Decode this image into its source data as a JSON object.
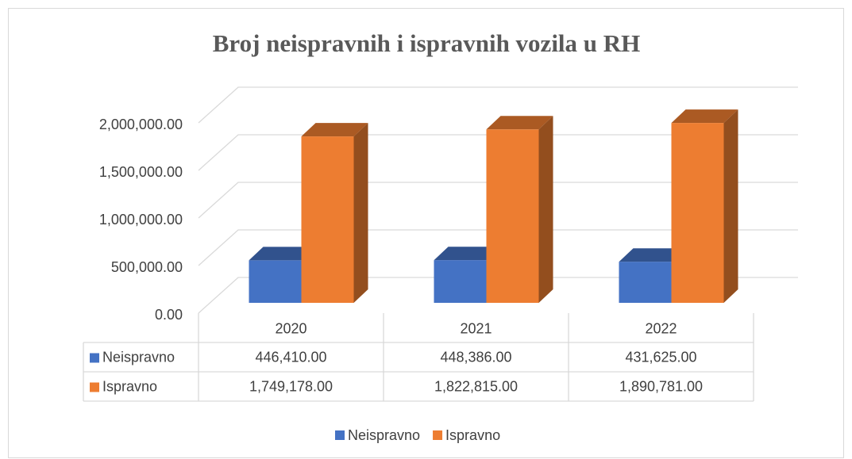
{
  "chart_data": {
    "type": "bar3d",
    "title": "Broj neispravnih i ispravnih vozila u RH",
    "categories": [
      "2020",
      "2021",
      "2022"
    ],
    "series": [
      {
        "name": "Neispravno",
        "color": "#4472c4",
        "values": [
          446410,
          448386,
          431625
        ],
        "value_labels": [
          "446,410.00",
          "448,386.00",
          "431,625.00"
        ]
      },
      {
        "name": "Ispravno",
        "color": "#ed7d31",
        "values": [
          1749178,
          1822815,
          1890781
        ],
        "value_labels": [
          "1,749,178.00",
          "1,822,815.00",
          "1,890,781.00"
        ]
      }
    ],
    "ylim": [
      0,
      2000000
    ],
    "yticks": [
      {
        "value": 0,
        "label": "0.00"
      },
      {
        "value": 500000,
        "label": "500,000.00"
      },
      {
        "value": 1000000,
        "label": "1,000,000.00"
      },
      {
        "value": 1500000,
        "label": "1,500,000.00"
      },
      {
        "value": 2000000,
        "label": "2,000,000.00"
      }
    ],
    "grid": true,
    "legend": "bottom",
    "data_table": true
  }
}
